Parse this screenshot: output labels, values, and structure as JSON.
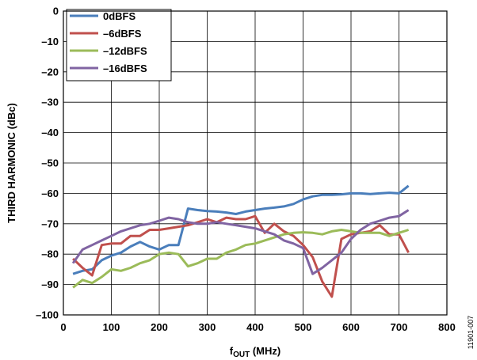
{
  "figure_id": "11901-007",
  "chart_data": {
    "type": "line",
    "xlabel_main": "f",
    "xlabel_sub": "OUT",
    "xlabel_tail": " (MHz)",
    "ylabel": "THIRD HARMONIC (dBc)",
    "xlim": [
      0,
      800
    ],
    "ylim": [
      -100,
      0
    ],
    "x_ticks": [
      "0",
      "100",
      "200",
      "300",
      "400",
      "500",
      "600",
      "700",
      "800"
    ],
    "y_ticks": [
      "0",
      "–10",
      "–20",
      "–30",
      "–40",
      "–50",
      "–60",
      "–70",
      "–80",
      "–90",
      "–100"
    ],
    "grid": true,
    "legend_position": "top-left",
    "series": [
      {
        "name": "0dBFS",
        "color": "#4a7ebb",
        "points": [
          [
            20,
            -86.5
          ],
          [
            40,
            -85.5
          ],
          [
            60,
            -85
          ],
          [
            80,
            -82
          ],
          [
            100,
            -80.5
          ],
          [
            120,
            -79.5
          ],
          [
            140,
            -77.5
          ],
          [
            160,
            -76
          ],
          [
            180,
            -77.5
          ],
          [
            200,
            -78.5
          ],
          [
            220,
            -77
          ],
          [
            240,
            -77
          ],
          [
            260,
            -65
          ],
          [
            280,
            -65.5
          ],
          [
            300,
            -65.8
          ],
          [
            320,
            -66
          ],
          [
            340,
            -66.3
          ],
          [
            360,
            -66.8
          ],
          [
            380,
            -66
          ],
          [
            400,
            -65.5
          ],
          [
            420,
            -65
          ],
          [
            440,
            -64.7
          ],
          [
            460,
            -64.3
          ],
          [
            480,
            -63.5
          ],
          [
            500,
            -62
          ],
          [
            520,
            -61
          ],
          [
            540,
            -60.5
          ],
          [
            560,
            -60.5
          ],
          [
            580,
            -60.3
          ],
          [
            600,
            -60
          ],
          [
            620,
            -60
          ],
          [
            640,
            -60.2
          ],
          [
            660,
            -60
          ],
          [
            680,
            -59.8
          ],
          [
            700,
            -60
          ],
          [
            720,
            -57.5
          ]
        ]
      },
      {
        "name": "–6dBFS",
        "color": "#c0504d",
        "points": [
          [
            20,
            -81.5
          ],
          [
            40,
            -84.5
          ],
          [
            60,
            -87
          ],
          [
            80,
            -77
          ],
          [
            100,
            -76.5
          ],
          [
            120,
            -76.5
          ],
          [
            140,
            -74
          ],
          [
            160,
            -74
          ],
          [
            180,
            -72
          ],
          [
            200,
            -72
          ],
          [
            220,
            -71.5
          ],
          [
            240,
            -71
          ],
          [
            260,
            -70.5
          ],
          [
            280,
            -69.5
          ],
          [
            300,
            -68.5
          ],
          [
            320,
            -69.5
          ],
          [
            340,
            -68
          ],
          [
            360,
            -68.5
          ],
          [
            380,
            -68.5
          ],
          [
            400,
            -67.5
          ],
          [
            420,
            -73
          ],
          [
            440,
            -70
          ],
          [
            460,
            -72.5
          ],
          [
            480,
            -74
          ],
          [
            500,
            -77
          ],
          [
            520,
            -81
          ],
          [
            540,
            -89
          ],
          [
            560,
            -94
          ],
          [
            580,
            -75
          ],
          [
            600,
            -73.5
          ],
          [
            620,
            -73
          ],
          [
            640,
            -72.5
          ],
          [
            660,
            -70.5
          ],
          [
            680,
            -73.5
          ],
          [
            700,
            -73.5
          ],
          [
            720,
            -79.5
          ]
        ]
      },
      {
        "name": "–12dBFS",
        "color": "#9bbb59",
        "points": [
          [
            20,
            -91
          ],
          [
            40,
            -88.5
          ],
          [
            60,
            -89.5
          ],
          [
            80,
            -87.5
          ],
          [
            100,
            -85
          ],
          [
            120,
            -85.5
          ],
          [
            140,
            -84.5
          ],
          [
            160,
            -83
          ],
          [
            180,
            -82
          ],
          [
            200,
            -80
          ],
          [
            220,
            -79.5
          ],
          [
            240,
            -80
          ],
          [
            260,
            -84
          ],
          [
            280,
            -83
          ],
          [
            300,
            -81.5
          ],
          [
            320,
            -81.5
          ],
          [
            340,
            -79.5
          ],
          [
            360,
            -78.5
          ],
          [
            380,
            -77
          ],
          [
            400,
            -76.5
          ],
          [
            420,
            -75.5
          ],
          [
            440,
            -74.5
          ],
          [
            460,
            -73.5
          ],
          [
            480,
            -73
          ],
          [
            500,
            -72.8
          ],
          [
            520,
            -73
          ],
          [
            540,
            -73.5
          ],
          [
            560,
            -72.5
          ],
          [
            580,
            -72
          ],
          [
            600,
            -72.5
          ],
          [
            620,
            -73
          ],
          [
            640,
            -73
          ],
          [
            660,
            -73
          ],
          [
            680,
            -74
          ],
          [
            700,
            -73
          ],
          [
            720,
            -72
          ]
        ]
      },
      {
        "name": "–16dBFS",
        "color": "#8064a2",
        "points": [
          [
            20,
            -83
          ],
          [
            40,
            -78.5
          ],
          [
            60,
            -77
          ],
          [
            80,
            -75.5
          ],
          [
            100,
            -74
          ],
          [
            120,
            -72.5
          ],
          [
            140,
            -71.5
          ],
          [
            160,
            -70.5
          ],
          [
            180,
            -70
          ],
          [
            200,
            -69
          ],
          [
            220,
            -68
          ],
          [
            240,
            -68.5
          ],
          [
            260,
            -69.5
          ],
          [
            280,
            -70
          ],
          [
            300,
            -70
          ],
          [
            320,
            -69.5
          ],
          [
            340,
            -70
          ],
          [
            360,
            -70.5
          ],
          [
            380,
            -71
          ],
          [
            400,
            -71.5
          ],
          [
            420,
            -72.5
          ],
          [
            440,
            -73.5
          ],
          [
            460,
            -75.5
          ],
          [
            480,
            -76.5
          ],
          [
            500,
            -78
          ],
          [
            520,
            -86.5
          ],
          [
            540,
            -84.5
          ],
          [
            560,
            -82
          ],
          [
            580,
            -79.5
          ],
          [
            600,
            -75
          ],
          [
            620,
            -72
          ],
          [
            640,
            -70
          ],
          [
            660,
            -69
          ],
          [
            680,
            -68
          ],
          [
            700,
            -67.5
          ],
          [
            720,
            -65.5
          ]
        ]
      }
    ]
  }
}
